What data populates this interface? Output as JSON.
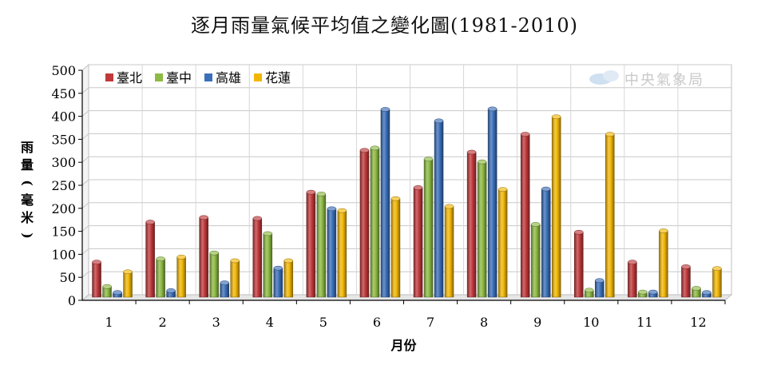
{
  "chart_data": {
    "type": "bar",
    "title": "逐月雨量氣候平均值之變化圖(1981-2010)",
    "xlabel": "月份",
    "ylabel": [
      "雨",
      "量",
      "(",
      "毫",
      "米",
      ")"
    ],
    "watermark": "中央氣象局",
    "categories": [
      "1",
      "2",
      "3",
      "4",
      "5",
      "6",
      "7",
      "8",
      "9",
      "10",
      "11",
      "12"
    ],
    "ylim": [
      0,
      500
    ],
    "yticks": [
      0,
      50,
      100,
      150,
      200,
      250,
      300,
      350,
      400,
      450,
      500
    ],
    "grid": true,
    "legend_position": "top-left",
    "series": [
      {
        "name": "臺北",
        "color": "#c0393b",
        "values": [
          83,
          170,
          180,
          178,
          235,
          326,
          245,
          322,
          361,
          148,
          83,
          73
        ]
      },
      {
        "name": "臺中",
        "color": "#8dba43",
        "values": [
          30,
          90,
          103,
          145,
          231,
          331,
          307,
          301,
          165,
          22,
          18,
          26
        ]
      },
      {
        "name": "高雄",
        "color": "#3b6fba",
        "values": [
          17,
          21,
          38,
          70,
          199,
          415,
          390,
          416,
          242,
          43,
          18,
          17
        ]
      },
      {
        "name": "花蓮",
        "color": "#f2b705",
        "values": [
          62,
          94,
          86,
          86,
          195,
          221,
          204,
          241,
          399,
          361,
          151,
          69
        ]
      }
    ]
  }
}
